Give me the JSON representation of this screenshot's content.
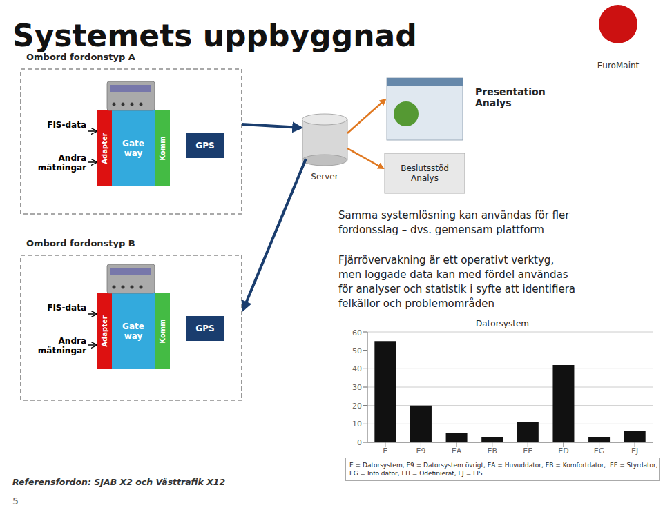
{
  "chart_data": {
    "type": "bar",
    "title": "Datorsystem",
    "categories": [
      "E",
      "E9",
      "EA",
      "EB",
      "EE",
      "ED",
      "EG",
      "EJ"
    ],
    "values": [
      55,
      20,
      5,
      3,
      11,
      42,
      3,
      6
    ],
    "color": "#111111",
    "ylim": [
      0,
      60
    ],
    "yticks": [
      0,
      10,
      20,
      30,
      40,
      50,
      60
    ],
    "grid": true,
    "annotations": [
      "Systemets uppbyggnad",
      "Ombord fordonstyp A",
      "Ombord fordonstyp B",
      "FIS-data",
      "Andra\nmätningar",
      "Adapter",
      "Gate\nway",
      "Komm",
      "GPS",
      "Server",
      "Presentation\nAnalys",
      "Beslutsstöd\nAnalys",
      "Samma systemlösning kan användas för fler\nfordonsslag – dvs. gemensam plattform",
      "Fjärrövervakning är ett operativt verktyg,\nmen loggade data kan med fördel användas\nför analyser och statistik i syfte att identifiera\nfelkällor och problemområden",
      "E = Datorsystem, E9 = Datorsystem övrigt, EA = Huvuddator, EB = Komfortdator,  EE = Styrdator,\nEG = Info dator, EH = Odefinierat, EJ = FIS",
      "Referensfordon: SJAB X2 och Västtrafik X12",
      "5",
      "EuroMaint"
    ]
  }
}
